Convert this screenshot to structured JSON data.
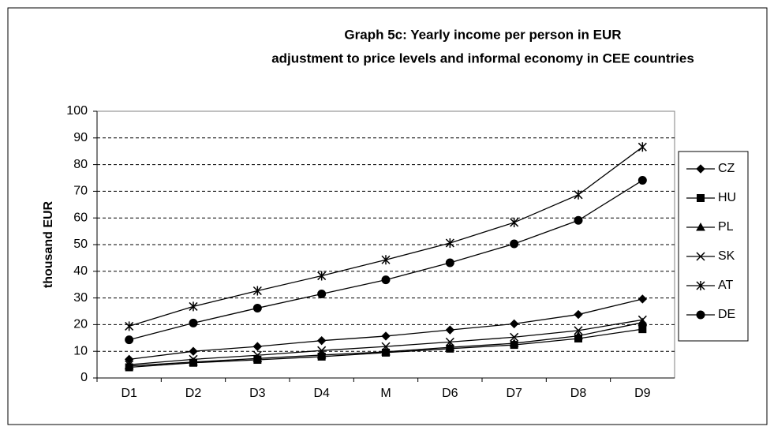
{
  "chart_data": {
    "type": "line",
    "title": "Graph 5c: Yearly income per person  in EUR",
    "subtitle": "adjustment to price levels and informal economy in CEE countries",
    "y_label": "thousand EUR",
    "categories": [
      "D1",
      "D2",
      "D3",
      "D4",
      "M",
      "D6",
      "D7",
      "D8",
      "D9"
    ],
    "series": [
      {
        "name": "CZ",
        "color": "#000000",
        "marker": "diamond",
        "values": [
          7,
          10,
          11.8,
          14,
          15.7,
          18,
          20.3,
          23.8,
          29.6
        ]
      },
      {
        "name": "HU",
        "color": "#000000",
        "marker": "square",
        "values": [
          4,
          5.7,
          6.8,
          8,
          9.5,
          11,
          12.4,
          14.8,
          18.3
        ]
      },
      {
        "name": "PL",
        "color": "#000000",
        "marker": "triangle",
        "values": [
          4.5,
          6,
          7.3,
          8.6,
          9.8,
          11.5,
          13,
          15.8,
          20.8
        ]
      },
      {
        "name": "SK",
        "color": "#000000",
        "marker": "x",
        "values": [
          5,
          7,
          8.5,
          10.3,
          11.8,
          13.5,
          15.3,
          17.8,
          21.8
        ]
      },
      {
        "name": "AT",
        "color": "#000000",
        "marker": "star",
        "values": [
          19.4,
          26.8,
          32.7,
          38.3,
          44.3,
          50.6,
          58.3,
          68.7,
          86.6
        ]
      },
      {
        "name": "DE",
        "color": "#000000",
        "marker": "circle",
        "values": [
          14.3,
          20.6,
          26.2,
          31.5,
          36.8,
          43.2,
          50.3,
          59.1,
          74.1
        ]
      }
    ],
    "ylim": [
      0,
      100
    ],
    "yticks": [
      0,
      10,
      20,
      30,
      40,
      50,
      60,
      70,
      80,
      90,
      100
    ],
    "grid": true,
    "legend": "right"
  }
}
